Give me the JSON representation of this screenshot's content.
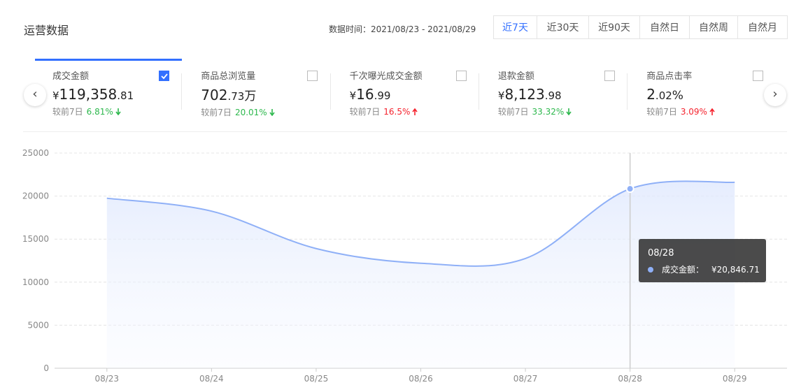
{
  "header": {
    "title": "运营数据",
    "date_label": "数据时间：2021/08/23 - 2021/08/29",
    "ranges": [
      "近7天",
      "近30天",
      "近90天",
      "自然日",
      "自然周",
      "自然月"
    ]
  },
  "cards": [
    {
      "label": "成交金额",
      "currency": "¥",
      "integer": "119,358",
      "decimal": ".81",
      "unit": "",
      "compare": "较前7日",
      "change": "6.81%",
      "trend": "down",
      "checked": true
    },
    {
      "label": "商品总浏览量",
      "currency": "",
      "integer": "702",
      "decimal": ".73",
      "unit": "万",
      "compare": "较前7日",
      "change": "20.01%",
      "trend": "down",
      "checked": false
    },
    {
      "label": "千次曝光成交金额",
      "currency": "¥",
      "integer": "16",
      "decimal": ".99",
      "unit": "",
      "compare": "较前7日",
      "change": "16.5%",
      "trend": "up",
      "checked": false
    },
    {
      "label": "退款金额",
      "currency": "¥",
      "integer": "8,123",
      "decimal": ".98",
      "unit": "",
      "compare": "较前7日",
      "change": "33.32%",
      "trend": "down",
      "checked": false
    },
    {
      "label": "商品点击率",
      "currency": "",
      "integer": "2",
      "decimal": ".02",
      "unit": "%",
      "compare": "较前7日",
      "change": "3.09%",
      "trend": "up",
      "checked": false
    }
  ],
  "chart_data": {
    "type": "line",
    "categories": [
      "08/23",
      "08/24",
      "08/25",
      "08/26",
      "08/27",
      "08/28",
      "08/29"
    ],
    "series": [
      {
        "name": "成交金额",
        "color": "#8fb0f7",
        "values": [
          19750,
          18250,
          13900,
          12200,
          12750,
          20846.71,
          21600
        ],
        "value_labels": [
          null,
          null,
          null,
          null,
          null,
          "¥20,846.71",
          null
        ]
      }
    ],
    "tooltip_label": "成交金额：",
    "ylim": [
      0,
      25000
    ],
    "yticks": [
      0,
      5000,
      10000,
      15000,
      20000,
      25000
    ],
    "grid": true
  }
}
